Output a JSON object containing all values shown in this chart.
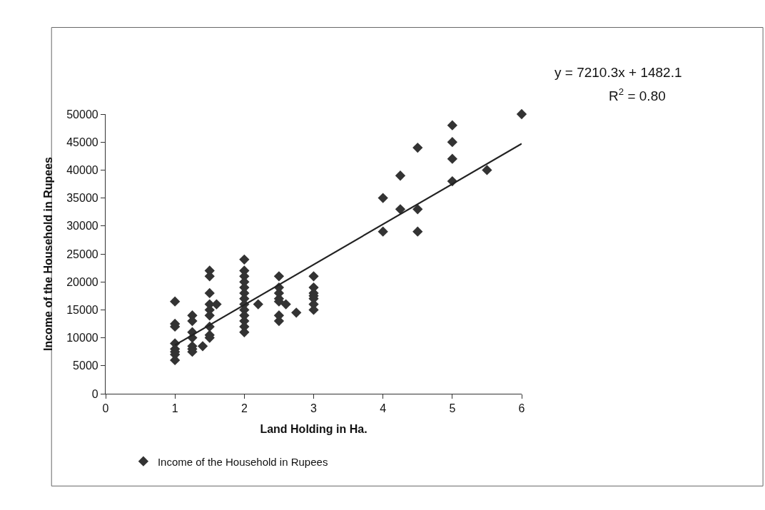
{
  "chart_data": {
    "type": "scatter",
    "xlabel": "Land Holding in Ha.",
    "ylabel": "Income of the Household in Rupees",
    "xlim": [
      0,
      6
    ],
    "xticks": [
      0,
      1,
      2,
      3,
      4,
      5,
      6
    ],
    "ylim": [
      0,
      50000
    ],
    "yticks": [
      0,
      5000,
      10000,
      15000,
      20000,
      25000,
      30000,
      35000,
      40000,
      45000,
      50000
    ],
    "grid": false,
    "legend": "bottom",
    "marker": "diamond",
    "series": [
      {
        "name": "Income of the Household in Rupees",
        "color": "#333333",
        "x": [
          1,
          1,
          1,
          1,
          1,
          1,
          1,
          1,
          1.25,
          1.25,
          1.25,
          1.25,
          1.25,
          1.25,
          1.25,
          1.4,
          1.5,
          1.5,
          1.5,
          1.5,
          1.5,
          1.5,
          1.5,
          1.5,
          1.5,
          1.6,
          2,
          2,
          2,
          2,
          2,
          2,
          2,
          2,
          2,
          2,
          2,
          2,
          2,
          2.2,
          2.5,
          2.5,
          2.5,
          2.5,
          2.5,
          2.5,
          2.5,
          2.6,
          2.75,
          3,
          3,
          3,
          3,
          3,
          3,
          3,
          4,
          4,
          4.25,
          4.25,
          4.5,
          4.5,
          4.5,
          5,
          5,
          5,
          5,
          5.5,
          6
        ],
        "values": [
          16500,
          12500,
          12000,
          9000,
          8000,
          7500,
          7000,
          6000,
          14000,
          13000,
          11000,
          10000,
          8500,
          8000,
          7500,
          8500,
          22000,
          21000,
          18000,
          16000,
          15000,
          14000,
          12000,
          10500,
          10000,
          16000,
          24000,
          22000,
          21000,
          20000,
          19000,
          18000,
          17000,
          16000,
          15000,
          14000,
          13000,
          12000,
          11000,
          16000,
          21000,
          19000,
          18000,
          17000,
          16500,
          14000,
          13000,
          16000,
          14500,
          21000,
          19000,
          18000,
          17500,
          17000,
          16000,
          15000,
          35000,
          29000,
          39000,
          33000,
          44000,
          33000,
          29000,
          48000,
          45000,
          42000,
          38000,
          40000,
          50000
        ]
      },
      {
        "type": "line",
        "color": "#222222",
        "line_style": "solid",
        "marker": "none",
        "x": [
          1,
          6
        ],
        "values": [
          8700,
          44700
        ]
      }
    ],
    "annotations": [
      "y = 7210.3x + 1482.1",
      "R$^{2}$ = 0.80"
    ]
  }
}
